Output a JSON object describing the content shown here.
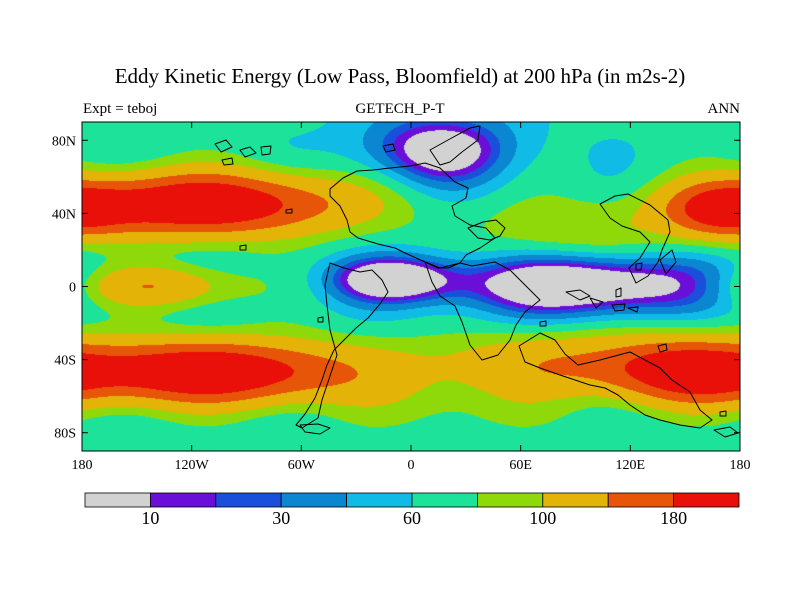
{
  "figure": {
    "title": "Eddy Kinetic Energy (Low Pass, Bloomfield) at 200 hPa (in m2s-2)",
    "left_label": "Expt = teboj",
    "center_label": "GETECH_P-T",
    "right_label": "ANN"
  },
  "chart_data": {
    "type": "heatmap",
    "title": "Eddy Kinetic Energy (Low Pass, Bloomfield) at 200 hPa (in m2s-2)",
    "units": "m2s-2",
    "xlabel": "",
    "ylabel": "",
    "xlim": [
      -180,
      180
    ],
    "ylim": [
      -90,
      90
    ],
    "x_ticks": [
      {
        "value": -180,
        "label": "180"
      },
      {
        "value": -120,
        "label": "120W"
      },
      {
        "value": -60,
        "label": "60W"
      },
      {
        "value": 0,
        "label": "0"
      },
      {
        "value": 60,
        "label": "60E"
      },
      {
        "value": 120,
        "label": "120E"
      },
      {
        "value": 180,
        "label": "180"
      }
    ],
    "y_ticks": [
      {
        "value": 80,
        "label": "80N"
      },
      {
        "value": 40,
        "label": "40N"
      },
      {
        "value": 0,
        "label": "0"
      },
      {
        "value": -40,
        "label": "40S"
      },
      {
        "value": -80,
        "label": "80S"
      }
    ],
    "levels": [
      0,
      10,
      20,
      30,
      45,
      60,
      80,
      100,
      140,
      180,
      999
    ],
    "colorbar": {
      "colors": [
        "#d2d2d2",
        "#6a0fd8",
        "#1a4fdc",
        "#0a87d0",
        "#10bce6",
        "#1de39a",
        "#8fd90a",
        "#e3b407",
        "#e65508",
        "#e81008"
      ],
      "labels": [
        "10",
        "30",
        "60",
        "100",
        "180"
      ],
      "label_boundaries": [
        1,
        3,
        5,
        7,
        9
      ]
    },
    "field_features": [
      {
        "lon": -115,
        "lat": 45,
        "amp": 170,
        "slon": 55,
        "slat": 12
      },
      {
        "lon": 172,
        "lat": 42,
        "amp": 110,
        "slon": 22,
        "slat": 10
      },
      {
        "lon": -110,
        "lat": -47,
        "amp": 170,
        "slon": 55,
        "slat": 12
      },
      {
        "lon": 152,
        "lat": -48,
        "amp": 100,
        "slon": 30,
        "slat": 12
      },
      {
        "lon": 95,
        "lat": -42,
        "amp": 70,
        "slon": 60,
        "slat": 12
      },
      {
        "lon": -140,
        "lat": 0,
        "amp": 75,
        "slon": 30,
        "slat": 8
      },
      {
        "lon": 95,
        "lat": 1,
        "amp": -90,
        "slon": 50,
        "slat": 12
      },
      {
        "lon": -10,
        "lat": 4,
        "amp": -75,
        "slon": 25,
        "slat": 9
      },
      {
        "lon": 15,
        "lat": 75,
        "amp": -70,
        "slon": 30,
        "slat": 14
      },
      {
        "lon": 90,
        "lat": 30,
        "amp": 35,
        "slon": 40,
        "slat": 12
      },
      {
        "lon": 25,
        "lat": -65,
        "amp": 20,
        "slon": 40,
        "slat": 12
      }
    ]
  }
}
